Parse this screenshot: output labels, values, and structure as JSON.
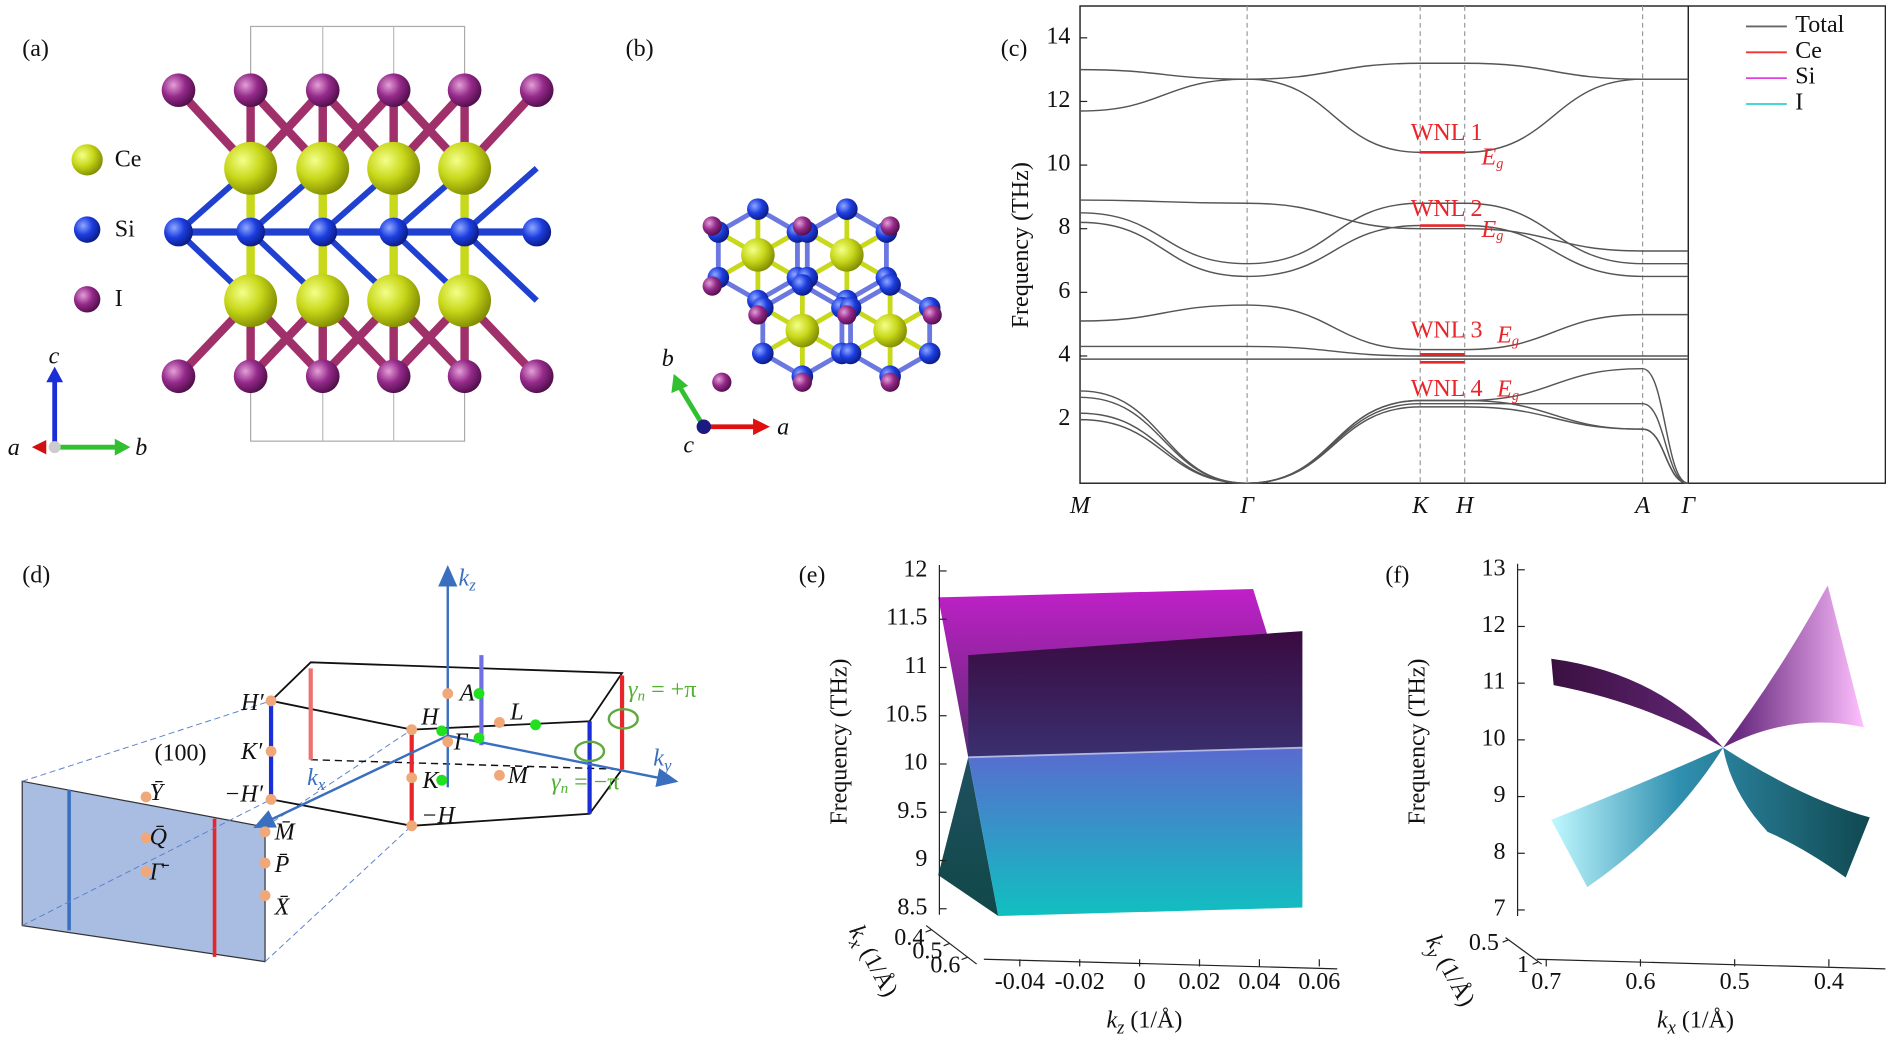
{
  "panels": {
    "a": {
      "label": "(a)",
      "legend": [
        "Ce",
        "Si",
        "I"
      ],
      "axes": [
        "c",
        "a",
        "b"
      ]
    },
    "b": {
      "label": "(b)",
      "axes": [
        "b",
        "c",
        "a"
      ]
    },
    "c": {
      "label": "(c)",
      "ylabel": "Frequency (THz)",
      "ylim": [
        0,
        15
      ],
      "yticks": [
        2,
        4,
        6,
        8,
        10,
        12,
        14
      ],
      "kpoints": [
        "M",
        "Γ",
        "K",
        "H",
        "A",
        "Γ"
      ],
      "bands": [
        [
          13.0,
          12.7,
          13.2,
          13.2,
          12.7,
          12.7
        ],
        [
          11.7,
          12.7,
          10.4,
          10.4,
          12.7,
          12.7
        ],
        [
          8.9,
          8.8,
          8.0,
          8.0,
          7.3,
          7.3
        ],
        [
          8.5,
          6.9,
          8.8,
          8.8,
          6.9,
          6.9
        ],
        [
          8.2,
          6.5,
          8.1,
          8.1,
          6.5,
          6.5
        ],
        [
          5.1,
          5.6,
          4.2,
          4.2,
          5.3,
          5.3
        ],
        [
          4.3,
          4.3,
          4.0,
          4.0,
          4.0,
          4.0
        ],
        [
          3.9,
          3.9,
          3.9,
          3.9,
          3.9,
          3.9
        ],
        [
          2.9,
          0,
          2.6,
          2.6,
          3.6,
          0
        ],
        [
          2.7,
          0,
          2.5,
          2.5,
          2.5,
          0
        ],
        [
          2.2,
          0,
          2.4,
          2.4,
          1.7,
          0
        ],
        [
          2.0,
          0,
          2.6,
          2.6,
          1.7,
          0
        ]
      ],
      "legend": [
        "Total",
        "Ce",
        "Si",
        "I"
      ],
      "wnl": [
        {
          "label": "WNL 1",
          "value": 10.4
        },
        {
          "label": "WNL 2",
          "value": 8.1
        },
        {
          "label": "WNL 3",
          "value": 4.05
        },
        {
          "label": "WNL 4",
          "value": 3.8
        }
      ],
      "irrep": {
        "sym": "E",
        "sub": "g"
      }
    },
    "d": {
      "label": "(d)",
      "points": [
        "H′",
        "K′",
        "−H′",
        "(100)",
        "Ȳ",
        "Q̄",
        "Γ̄",
        "M̄",
        "P̄",
        "X̄",
        "A",
        "H",
        "L",
        "Γ",
        "K",
        "M",
        "−H"
      ],
      "kz": {
        "sym": "k",
        "sub": "z"
      },
      "kx": {
        "sym": "k",
        "sub": "x"
      },
      "ky": {
        "sym": "k",
        "sub": "y"
      },
      "gamma_plus": {
        "sym": "γ",
        "sub": "n",
        "rest": " = +π"
      },
      "gamma_minus": {
        "sym": "γ",
        "sub": "n",
        "rest": " = −π"
      }
    },
    "e": {
      "label": "(e)",
      "zlabel": "Frequency (THz)",
      "zlim": [
        8.5,
        12
      ],
      "zticks": [
        8.5,
        9,
        9.5,
        10,
        10.5,
        11,
        11.5,
        12
      ],
      "xlim": [
        -0.052,
        0.066
      ],
      "xticks": [
        -0.04,
        -0.02,
        0,
        0.02,
        0.04,
        0.06
      ],
      "xlabel": {
        "sym": "k",
        "sub": "z",
        "unit": " (1/Å)"
      },
      "ylim": [
        0.37,
        0.65
      ],
      "yticks": [
        0.4,
        0.5,
        0.6
      ],
      "ylabel": {
        "sym": "k",
        "sub": "x",
        "unit": " (1/Å)"
      }
    },
    "f": {
      "label": "(f)",
      "zlabel": "Frequency (THz)",
      "zlim": [
        7,
        13
      ],
      "zticks": [
        7,
        8,
        9,
        10,
        11,
        12,
        13
      ],
      "xlim": [
        0.71,
        0.34
      ],
      "xticks": [
        0.7,
        0.6,
        0.5,
        0.4
      ],
      "xlabel": {
        "sym": "k",
        "sub": "x",
        "unit": " (1/Å)"
      },
      "ylim": [
        0.45,
        1.05
      ],
      "yticks": [
        0.5,
        1
      ],
      "ylabel": {
        "sym": "k",
        "sub": "y",
        "unit": " (1/Å)"
      }
    }
  }
}
